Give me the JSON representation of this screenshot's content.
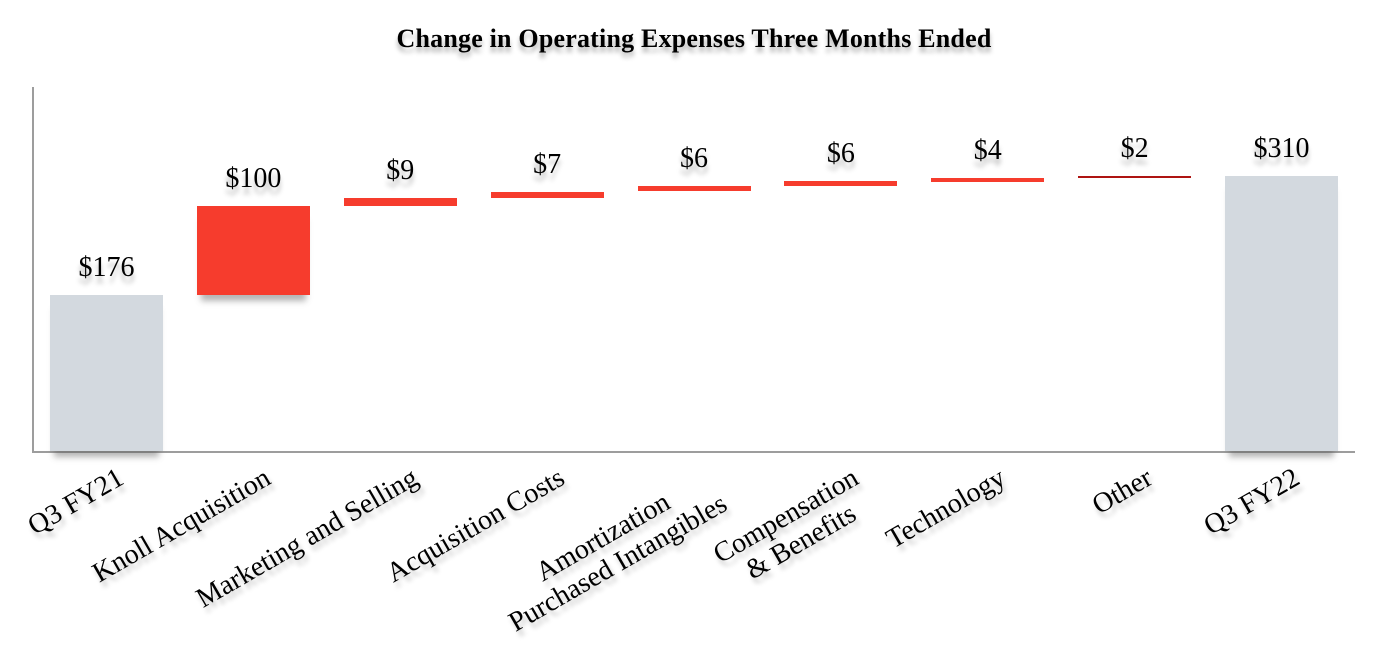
{
  "chart_data": {
    "type": "bar",
    "subtype": "waterfall",
    "title": "Change in Operating Expenses Three Months Ended",
    "xlabel": "",
    "ylabel": "",
    "ylim": [
      0,
      410
    ],
    "grid": false,
    "legend": false,
    "categories": [
      "Q3 FY21",
      "Knoll Acquisition",
      "Marketing and Selling",
      "Acquisition Costs",
      [
        "Amortization",
        "Purchased Intangibles"
      ],
      [
        "Compensation",
        "& Benefits"
      ],
      "Technology",
      "Other",
      "Q3 FY22"
    ],
    "values": [
      176,
      100,
      9,
      7,
      6,
      6,
      4,
      2,
      310
    ],
    "measures": [
      "absolute",
      "relative",
      "relative",
      "relative",
      "relative",
      "relative",
      "relative",
      "relative",
      "absolute"
    ],
    "data_labels": [
      "$176",
      "$100",
      "$9",
      "$7",
      "$6",
      "$6",
      "$4",
      "$2",
      "$310"
    ],
    "bar_colors": [
      "#d3d9df",
      "#f63c2d",
      "#f63c2d",
      "#f63c2d",
      "#f63c2d",
      "#f63c2d",
      "#f63c2d",
      "#ae1412",
      "#d3d9df"
    ],
    "colors": {
      "total_bar": "#d3d9df",
      "increase_bar": "#f63c2d",
      "small_increase_bar": "#ae1412",
      "axis_line": "#9d9d9d",
      "text": "#000000",
      "background": "#ffffff"
    }
  }
}
